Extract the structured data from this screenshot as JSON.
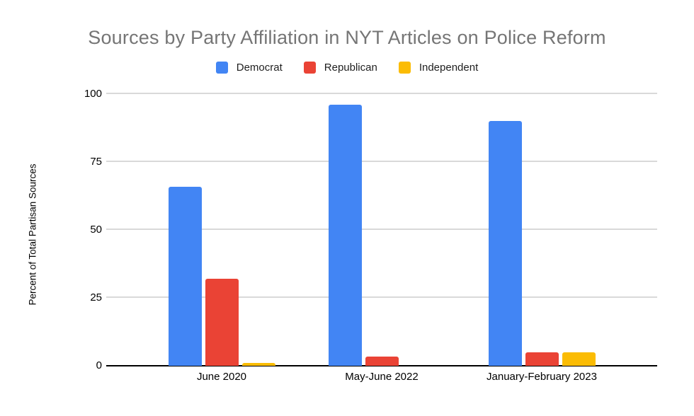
{
  "chart_data": {
    "type": "bar",
    "title": "Sources by Party Affiliation in NYT Articles on Police Reform",
    "ylabel": "Percent of Total Partisan Sources",
    "xlabel": "",
    "categories": [
      "June 2020",
      "May-June 2022",
      "January-February 2023"
    ],
    "series": [
      {
        "name": "Democrat",
        "color": "#4285F4",
        "values": [
          66,
          96,
          90
        ]
      },
      {
        "name": "Republican",
        "color": "#EA4335",
        "values": [
          32,
          3.5,
          5
        ]
      },
      {
        "name": "Independent",
        "color": "#FBBC04",
        "values": [
          1,
          0,
          5
        ]
      }
    ],
    "ylim": [
      0,
      100
    ],
    "yticks": [
      0,
      25,
      50,
      75,
      100
    ],
    "grid": true,
    "legend_position": "top"
  },
  "colors": {
    "background": "#ffffff",
    "title_text": "#757575",
    "axis_text": "#000000",
    "legend_text": "#1f1f1f",
    "gridline": "#d9d9d9",
    "baseline": "#000000",
    "democrat": "#4285F4",
    "republican": "#EA4335",
    "independent": "#FBBC04"
  }
}
